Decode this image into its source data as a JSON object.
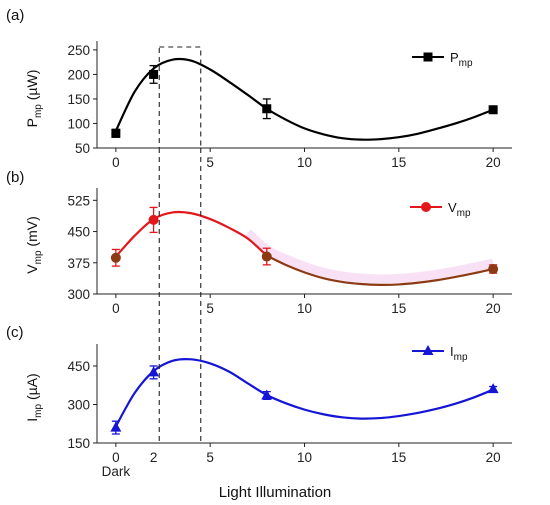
{
  "chart_data": [
    {
      "panel": "(a)",
      "type": "line",
      "x_ticks": [
        "0",
        "5",
        "10",
        "15",
        "20"
      ],
      "y_ticks": [
        "50",
        "100",
        "150",
        "200",
        "250"
      ],
      "xlim": [
        -1,
        21
      ],
      "ylim": [
        50,
        260
      ],
      "ylabel": {
        "main": "P",
        "sub": "mp",
        "unit": " (µW)"
      },
      "series": [
        {
          "name": {
            "main": "P",
            "sub": "mp"
          },
          "color": "#000000",
          "marker": "square",
          "points": [
            {
              "x": 0,
              "y": 80,
              "err": 8
            },
            {
              "x": 2,
              "y": 200,
              "err": 18
            },
            {
              "x": 8,
              "y": 130,
              "err": 20
            },
            {
              "x": 20,
              "y": 128,
              "err": 7
            }
          ],
          "fit": [
            [
              0,
              85
            ],
            [
              1,
              165
            ],
            [
              2,
              212
            ],
            [
              3,
              230
            ],
            [
              4,
              228
            ],
            [
              5,
              210
            ],
            [
              6,
              185
            ],
            [
              7,
              158
            ],
            [
              8,
              130
            ],
            [
              9,
              108
            ],
            [
              10,
              90
            ],
            [
              11,
              78
            ],
            [
              12,
              70
            ],
            [
              13,
              67
            ],
            [
              14,
              68
            ],
            [
              15,
              72
            ],
            [
              16,
              79
            ],
            [
              17,
              89
            ],
            [
              18,
              100
            ],
            [
              19,
              113
            ],
            [
              20,
              128
            ]
          ]
        }
      ]
    },
    {
      "panel": "(b)",
      "type": "line",
      "x_ticks": [
        "0",
        "5",
        "10",
        "15",
        "20"
      ],
      "y_ticks": [
        "300",
        "375",
        "450",
        "525"
      ],
      "xlim": [
        -1,
        21
      ],
      "ylim": [
        300,
        545
      ],
      "ylabel": {
        "main": "V",
        "sub": "mp",
        "unit": " (mV)"
      },
      "series": [
        {
          "name": {
            "main": "V",
            "sub": "mp"
          },
          "color": "#e3161b",
          "marker": "circle",
          "points": [
            {
              "x": 0,
              "y": 387,
              "err": 20
            },
            {
              "x": 2,
              "y": 478,
              "err": 30
            },
            {
              "x": 8,
              "y": 390,
              "err": 20
            },
            {
              "x": 20,
              "y": 360,
              "err": 10
            }
          ],
          "fit": [
            [
              0,
              390
            ],
            [
              1,
              440
            ],
            [
              2,
              480
            ],
            [
              3,
              496
            ],
            [
              4,
              494
            ],
            [
              5,
              480
            ],
            [
              6,
              459
            ],
            [
              7,
              433
            ],
            [
              8,
              392
            ],
            [
              9,
              370
            ],
            [
              10,
              352
            ],
            [
              11,
              338
            ],
            [
              12,
              329
            ],
            [
              13,
              324
            ],
            [
              14,
              322
            ],
            [
              15,
              323
            ],
            [
              16,
              327
            ],
            [
              17,
              333
            ],
            [
              18,
              341
            ],
            [
              19,
              350
            ],
            [
              20,
              360
            ]
          ]
        }
      ]
    },
    {
      "panel": "(c)",
      "type": "line",
      "x_ticks": [
        "0",
        "5",
        "10",
        "15",
        "20"
      ],
      "y_ticks": [
        "150",
        "300",
        "450"
      ],
      "xlim": [
        -1,
        21
      ],
      "ylim": [
        150,
        520
      ],
      "ylabel": {
        "main": "I",
        "sub": "mp",
        "unit": " (µA)"
      },
      "series": [
        {
          "name": {
            "main": "I",
            "sub": "mp"
          },
          "color": "#1515d6",
          "marker": "triangle",
          "points": [
            {
              "x": 0,
              "y": 210,
              "err": 25
            },
            {
              "x": 2,
              "y": 425,
              "err": 25
            },
            {
              "x": 8,
              "y": 335,
              "err": 15
            },
            {
              "x": 20,
              "y": 360,
              "err": 10
            }
          ],
          "fit": [
            [
              0,
              215
            ],
            [
              1,
              345
            ],
            [
              2,
              430
            ],
            [
              3,
              470
            ],
            [
              4,
              476
            ],
            [
              5,
              460
            ],
            [
              6,
              428
            ],
            [
              7,
              382
            ],
            [
              8,
              337
            ],
            [
              9,
              305
            ],
            [
              10,
              280
            ],
            [
              11,
              262
            ],
            [
              12,
              250
            ],
            [
              13,
              245
            ],
            [
              14,
              247
            ],
            [
              15,
              255
            ],
            [
              16,
              267
            ],
            [
              17,
              283
            ],
            [
              18,
              303
            ],
            [
              19,
              328
            ],
            [
              20,
              358
            ]
          ]
        }
      ]
    }
  ],
  "extra_tick_labels": {
    "dark": "Dark",
    "two": "2"
  },
  "xlabel": "Light Illumination"
}
